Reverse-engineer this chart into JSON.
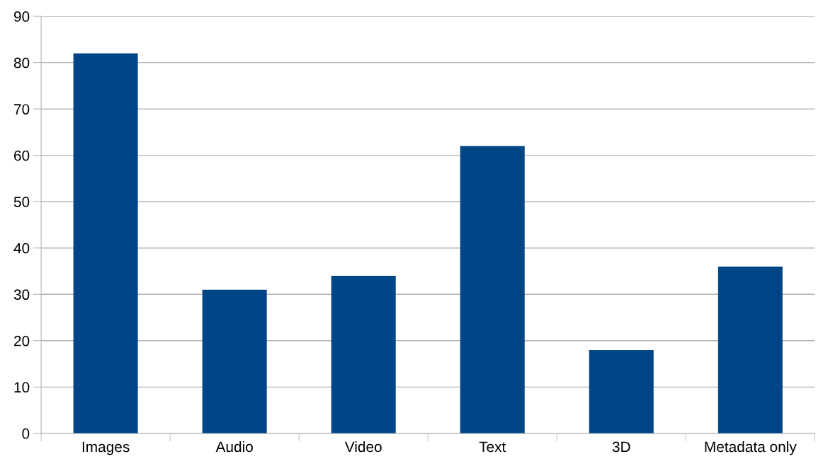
{
  "chart_data": {
    "type": "bar",
    "categories": [
      "Images",
      "Audio",
      "Video",
      "Text",
      "3D",
      "Metadata only"
    ],
    "values": [
      82,
      31,
      34,
      62,
      18,
      36
    ],
    "color": "#004586",
    "ylim": [
      0,
      90
    ],
    "yticks": [
      0,
      10,
      20,
      30,
      40,
      50,
      60,
      70,
      80,
      90
    ],
    "grid": "y",
    "legend": false
  }
}
